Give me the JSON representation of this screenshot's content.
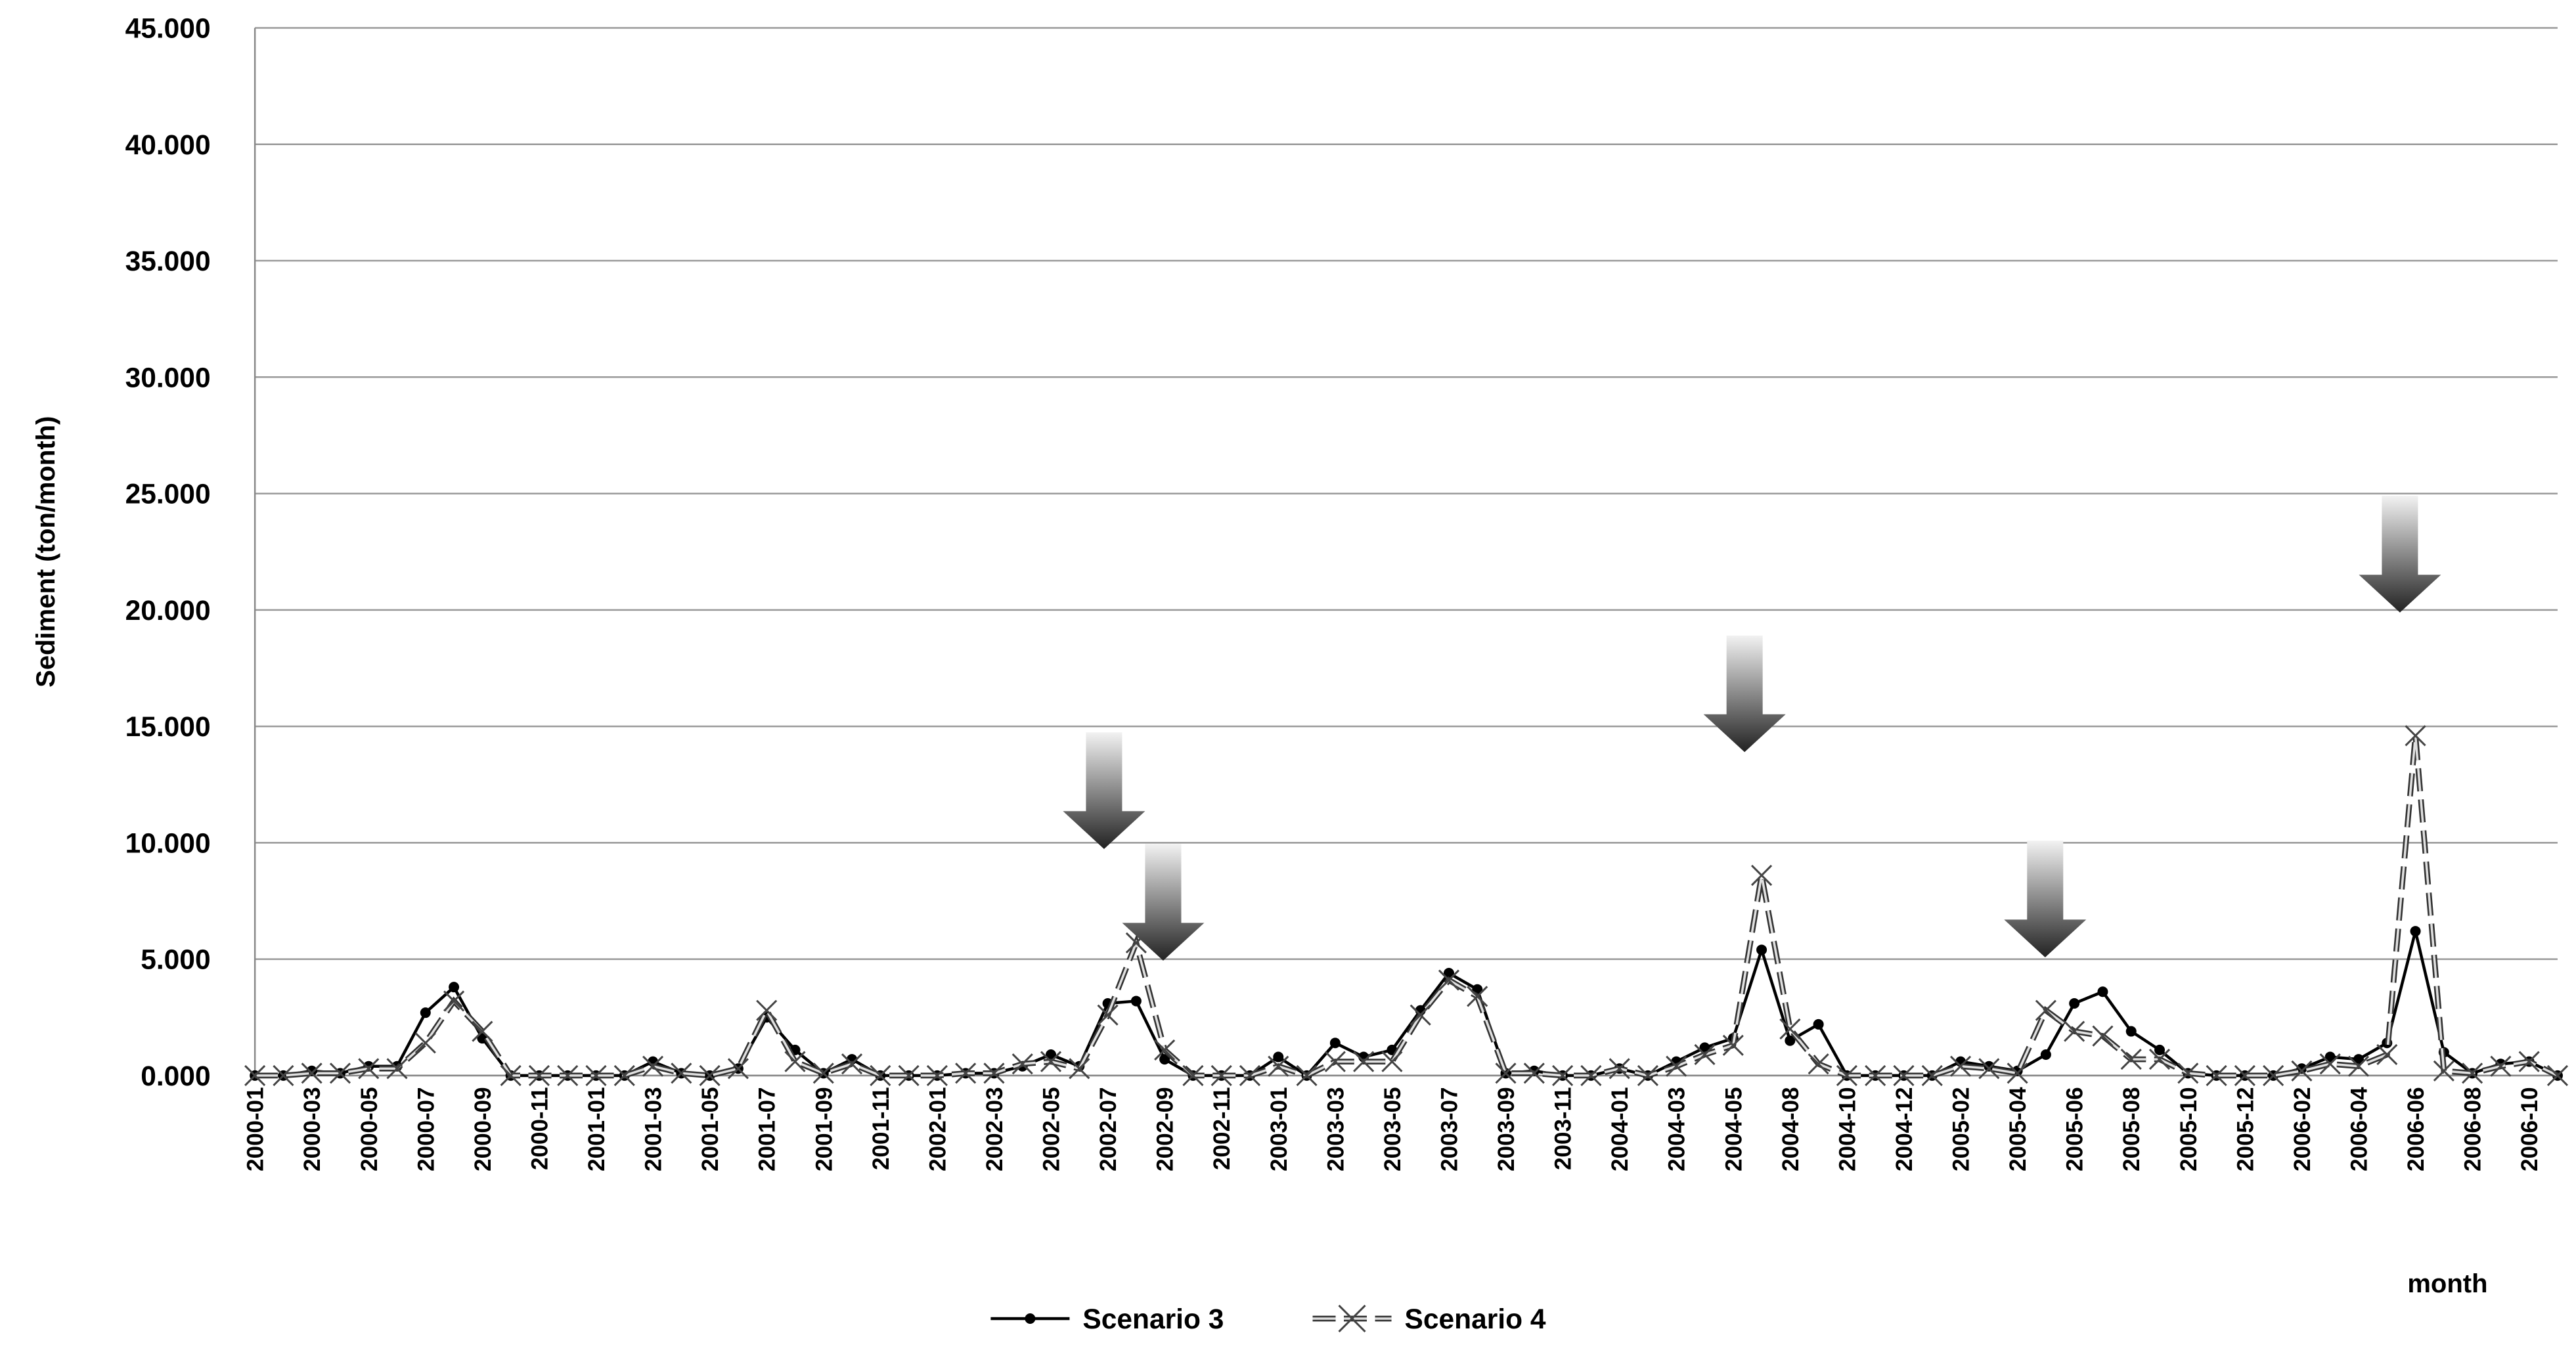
{
  "chart_data": {
    "type": "line",
    "ylabel": "Sediment (ton/month)",
    "xlabel": "month",
    "grid": true,
    "legend_position": "bottom",
    "ylim": [
      0,
      45
    ],
    "yticks": [
      {
        "value": 0,
        "label": "0.000"
      },
      {
        "value": 5,
        "label": "5.000"
      },
      {
        "value": 10,
        "label": "10.000"
      },
      {
        "value": 15,
        "label": "15.000"
      },
      {
        "value": 20,
        "label": "20.000"
      },
      {
        "value": 25,
        "label": "25.000"
      },
      {
        "value": 30,
        "label": "30.000"
      },
      {
        "value": 35,
        "label": "35.000"
      },
      {
        "value": 40,
        "label": "40.000"
      },
      {
        "value": 45,
        "label": "45.000"
      }
    ],
    "categories": [
      "2000-01",
      null,
      "2000-03",
      null,
      "2000-05",
      null,
      "2000-07",
      null,
      "2000-09",
      null,
      "2000-11",
      null,
      "2001-01",
      null,
      "2001-03",
      null,
      "2001-05",
      null,
      "2001-07",
      null,
      "2001-09",
      null,
      "2001-11",
      null,
      "2002-01",
      null,
      "2002-03",
      null,
      "2002-05",
      null,
      "2002-07",
      null,
      "2002-09",
      null,
      "2002-11",
      null,
      "2003-01",
      null,
      "2003-03",
      null,
      "2003-05",
      null,
      "2003-07",
      null,
      "2003-09",
      null,
      "2003-11",
      null,
      "2004-01",
      null,
      "2004-03",
      null,
      "2004-05",
      null,
      "2004-08",
      null,
      "2004-10",
      null,
      "2004-12",
      null,
      "2005-02",
      null,
      "2005-04",
      null,
      "2005-06",
      null,
      "2005-08",
      null,
      "2005-10",
      null,
      "2005-12",
      null,
      "2006-02",
      null,
      "2006-04",
      null,
      "2006-06",
      null,
      "2006-08",
      null,
      "2006-10",
      null
    ],
    "series": [
      {
        "name": "Scenario 3",
        "color": "#000000",
        "marker": "dot",
        "values": [
          0,
          0,
          0.2,
          0.1,
          0.4,
          0.4,
          2.7,
          3.8,
          1.6,
          0,
          0,
          0,
          0,
          0,
          0.6,
          0.1,
          0,
          0.3,
          2.5,
          1.1,
          0.1,
          0.7,
          0,
          0,
          0,
          0.1,
          0.1,
          0.4,
          0.9,
          0.4,
          3.1,
          3.2,
          0.7,
          0,
          0,
          0,
          0.8,
          0,
          1.4,
          0.8,
          1.1,
          2.8,
          4.4,
          3.7,
          0.1,
          0.2,
          0,
          0,
          0.3,
          0,
          0.6,
          1.2,
          1.6,
          5.4,
          1.5,
          2.2,
          0,
          0,
          0,
          0,
          0.6,
          0.4,
          0.2,
          0.9,
          3.1,
          3.6,
          1.9,
          1.1,
          0.1,
          0,
          0,
          0,
          0.3,
          0.8,
          0.7,
          1.4,
          6.2,
          1.0,
          0.1,
          0.5,
          0.6,
          0
        ]
      },
      {
        "name": "Scenario 4",
        "color": "#333333",
        "marker": "x",
        "values": [
          0,
          0,
          0.1,
          0.1,
          0.3,
          0.3,
          1.4,
          3.2,
          1.9,
          0,
          0,
          0,
          0,
          0,
          0.4,
          0.1,
          0,
          0.3,
          2.8,
          0.6,
          0.1,
          0.5,
          0,
          0,
          0,
          0.1,
          0.1,
          0.5,
          0.6,
          0.3,
          2.6,
          5.7,
          1.1,
          0,
          0,
          0,
          0.4,
          0,
          0.6,
          0.6,
          0.6,
          2.6,
          4.1,
          3.4,
          0.1,
          0.1,
          0,
          0,
          0.3,
          0,
          0.4,
          0.9,
          1.3,
          8.6,
          2.0,
          0.5,
          0,
          0,
          0,
          0,
          0.4,
          0.3,
          0.1,
          2.8,
          1.9,
          1.7,
          0.7,
          0.7,
          0.1,
          0,
          0,
          0,
          0.2,
          0.5,
          0.4,
          0.9,
          14.6,
          0.2,
          0.1,
          0.4,
          0.6,
          0
        ]
      }
    ]
  }
}
